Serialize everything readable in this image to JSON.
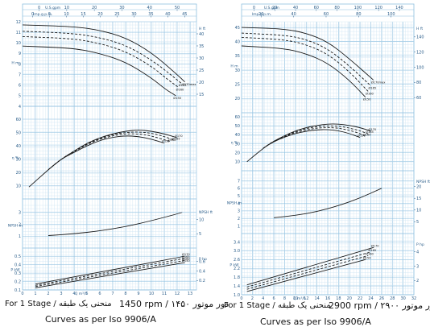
{
  "colors": {
    "grid_major": "#8fc0e0",
    "grid_minor": "#cde3f3",
    "curve": "#1a1a1a",
    "tick": "#2a5d8a"
  },
  "captions": [
    {
      "stage": "For 1 Stage / منحنی یک طبقه",
      "rpm": "1450 rpm / ۱۴۵۰ دور موتور",
      "iso": "Curves as per Iso 9906/A"
    },
    {
      "stage": "For 1 Stage / منحنی یک طبقه",
      "rpm": "2900 rpm / ۲۹۰۰ دور موتور",
      "iso": "Curves as per Iso 9906/A"
    }
  ],
  "chart_data": [
    {
      "type": "line",
      "rpm": 1450,
      "x_bottom": {
        "label": "Q m³/h",
        "ticks": [
          "0",
          "1",
          "2",
          "3",
          "4",
          "5",
          "6",
          "7",
          "8",
          "9",
          "10",
          "11",
          "12",
          "13"
        ],
        "range": [
          0,
          13.5
        ]
      },
      "x_top": [
        {
          "label": "U.S.gpm",
          "ticks": [
            "0",
            "10",
            "20",
            "30",
            "40",
            "50"
          ]
        },
        {
          "label": "Imp.g.p.m.",
          "ticks": [
            "0",
            "5",
            "10",
            "15",
            "20",
            "25",
            "30",
            "35",
            "40",
            "45"
          ]
        }
      ],
      "panels": [
        {
          "name": "head",
          "left_label": "H m",
          "left_ticks": [
            "4",
            "5",
            "6",
            "7",
            "8",
            "9",
            "10",
            "11",
            "12"
          ],
          "left_range": [
            4,
            12
          ],
          "right_label": "H ft",
          "right_ticks": [
            "15",
            "20",
            "25",
            "30",
            "35",
            "40"
          ],
          "series": [
            {
              "name": "Ø170max",
              "dashed": false,
              "x": [
                0,
                4,
                6,
                8,
                10,
                12,
                12.6
              ],
              "y": [
                11.7,
                11.55,
                11.2,
                10.5,
                9.1,
                7.0,
                6.3
              ]
            },
            {
              "name": "Ø165",
              "dashed": true,
              "x": [
                0,
                4,
                6,
                8,
                10,
                11.5,
                12.3
              ],
              "y": [
                11.1,
                10.9,
                10.5,
                9.8,
                8.4,
                7.0,
                6.2
              ]
            },
            {
              "name": "Ø160",
              "dashed": true,
              "x": [
                0,
                4,
                6,
                8,
                10,
                11.3,
                12.1
              ],
              "y": [
                10.6,
                10.4,
                9.95,
                9.2,
                7.8,
                6.5,
                5.8
              ]
            },
            {
              "name": "Ø150",
              "dashed": false,
              "x": [
                0,
                4,
                6,
                8,
                10,
                11.1,
                11.9
              ],
              "y": [
                9.7,
                9.5,
                9.0,
                8.2,
                6.7,
                5.6,
                5.0
              ]
            }
          ]
        },
        {
          "name": "efficiency",
          "left_label": "η %",
          "left_ticks": [
            "10",
            "20",
            "30",
            "40",
            "50",
            "60"
          ],
          "left_range": [
            0,
            60
          ],
          "series": [
            {
              "name": "Ø170",
              "dashed": false,
              "x": [
                0.5,
                2,
                3,
                4,
                5,
                6,
                7,
                8,
                9,
                10,
                11,
                12
              ],
              "y": [
                9,
                22,
                30,
                36,
                42,
                46,
                49,
                51,
                52,
                51,
                49,
                46
              ]
            },
            {
              "name": "Ø165",
              "dashed": true,
              "x": [
                2,
                3,
                4,
                5,
                6,
                7,
                8,
                9,
                10,
                11,
                11.8
              ],
              "y": [
                22,
                30,
                36,
                41.5,
                45.5,
                48.5,
                50,
                50.5,
                49.5,
                47,
                44
              ]
            },
            {
              "name": "Ø160",
              "dashed": true,
              "x": [
                2,
                3,
                4,
                5,
                6,
                7,
                8,
                9,
                10,
                11.5
              ],
              "y": [
                22,
                30,
                35.5,
                41,
                45,
                47.5,
                49,
                49,
                47.5,
                43
              ]
            },
            {
              "name": "Ø150",
              "dashed": false,
              "x": [
                2,
                3,
                4,
                5,
                6,
                7,
                8,
                9,
                10,
                11
              ],
              "y": [
                22,
                30,
                35,
                40,
                44,
                46.5,
                47.5,
                47,
                45,
                42
              ]
            }
          ]
        },
        {
          "name": "npsh",
          "left_label": "NPSH m",
          "left_ticks": [
            "1",
            "2",
            "3"
          ],
          "left_range": [
            0,
            3.6
          ],
          "right_label": "NPSH ft",
          "right_ticks": [
            "5",
            "10"
          ],
          "series": [
            {
              "name": "",
              "dashed": false,
              "x": [
                2,
                4,
                6,
                8,
                10,
                12.4
              ],
              "y": [
                1.05,
                1.2,
                1.45,
                1.8,
                2.3,
                3.0
              ]
            }
          ]
        },
        {
          "name": "power",
          "left_label": "P kW",
          "left_ticks": [
            "0.1",
            "0.2",
            "0.3",
            "0.4",
            "0.5"
          ],
          "left_range": [
            0.1,
            0.55
          ],
          "right_label": "P hp",
          "right_ticks": [
            "0.2",
            "0.4",
            "0.6"
          ],
          "series": [
            {
              "name": "Ø170",
              "dashed": false,
              "x": [
                1,
                12.6
              ],
              "y": [
                0.17,
                0.5
              ]
            },
            {
              "name": "Ø165",
              "dashed": true,
              "x": [
                1,
                12.6
              ],
              "y": [
                0.155,
                0.475
              ]
            },
            {
              "name": "Ø160",
              "dashed": true,
              "x": [
                1,
                12.6
              ],
              "y": [
                0.14,
                0.45
              ]
            },
            {
              "name": "Ø150",
              "dashed": false,
              "x": [
                1,
                12.6
              ],
              "y": [
                0.125,
                0.425
              ]
            }
          ]
        }
      ]
    },
    {
      "type": "line",
      "rpm": 2900,
      "x_bottom": {
        "label": "Q m³/h",
        "ticks": [
          "0",
          "2",
          "4",
          "6",
          "8",
          "10",
          "12",
          "14",
          "16",
          "18",
          "20",
          "22",
          "24",
          "26",
          "28",
          "30",
          "32"
        ],
        "range": [
          0,
          32
        ]
      },
      "x_top": [
        {
          "label": "U.S.gpm",
          "ticks": [
            "0",
            "20",
            "40",
            "60",
            "80",
            "100",
            "120",
            "140"
          ]
        },
        {
          "label": "Imp.g.p.m.",
          "ticks": [
            "20",
            "40",
            "60",
            "80",
            "100"
          ]
        }
      ],
      "panels": [
        {
          "name": "head",
          "left_label": "H m",
          "left_ticks": [
            "20",
            "25",
            "30",
            "35",
            "40",
            "45"
          ],
          "left_range": [
            15,
            47
          ],
          "right_label": "H ft",
          "right_ticks": [
            "60",
            "80",
            "100",
            "120",
            "140"
          ],
          "series": [
            {
              "name": "Ø170max",
              "dashed": false,
              "x": [
                0,
                8,
                12,
                16,
                20,
                24.5
              ],
              "y": [
                45,
                44.5,
                43,
                40,
                34,
                26.5
              ]
            },
            {
              "name": "Ø165",
              "dashed": true,
              "x": [
                0,
                8,
                12,
                16,
                20,
                24
              ],
              "y": [
                43,
                42.3,
                40.8,
                37.5,
                31.5,
                24.5
              ]
            },
            {
              "name": "Ø160",
              "dashed": true,
              "x": [
                0,
                8,
                12,
                16,
                20,
                23.5
              ],
              "y": [
                41.5,
                40.7,
                39,
                35.7,
                29.5,
                22.5
              ]
            },
            {
              "name": "Ø150",
              "dashed": false,
              "x": [
                0,
                8,
                12,
                16,
                20,
                23
              ],
              "y": [
                38.5,
                37.6,
                35.8,
                32.5,
                26.5,
                20.5
              ]
            }
          ]
        },
        {
          "name": "efficiency",
          "left_label": "η %",
          "left_ticks": [
            "10",
            "20",
            "30",
            "40",
            "50",
            "60"
          ],
          "left_range": [
            0,
            60
          ],
          "series": [
            {
              "name": "Ø170",
              "dashed": false,
              "x": [
                1,
                4,
                6,
                8,
                10,
                12,
                14,
                16,
                18,
                20,
                22,
                24
              ],
              "y": [
                10,
                25,
                33,
                39,
                44.5,
                48,
                50.5,
                52,
                52,
                50.5,
                48,
                44
              ]
            },
            {
              "name": "Ø165",
              "dashed": true,
              "x": [
                4,
                6,
                8,
                10,
                12,
                14,
                16,
                18,
                20,
                22,
                23.5
              ],
              "y": [
                25,
                33,
                38.5,
                43.5,
                47,
                49,
                50,
                49.5,
                47.5,
                44.5,
                41
              ]
            },
            {
              "name": "Ø160",
              "dashed": true,
              "x": [
                4,
                6,
                8,
                10,
                12,
                14,
                16,
                18,
                20,
                22,
                23
              ],
              "y": [
                25,
                33,
                38,
                42.5,
                45.5,
                47.5,
                48,
                47.5,
                45,
                41.5,
                38
              ]
            },
            {
              "name": "Ø150",
              "dashed": false,
              "x": [
                4,
                6,
                8,
                10,
                12,
                14,
                16,
                18,
                20,
                22
              ],
              "y": [
                25,
                32.5,
                37.5,
                41.5,
                44,
                45.5,
                45.8,
                44.5,
                41.5,
                37
              ]
            }
          ]
        },
        {
          "name": "npsh",
          "left_label": "NPSH m",
          "left_ticks": [
            "1",
            "2",
            "3",
            "4",
            "5",
            "6",
            "7"
          ],
          "left_range": [
            0,
            7.8
          ],
          "right_label": "NPSH ft",
          "right_ticks": [
            "5",
            "10",
            "15",
            "20"
          ],
          "series": [
            {
              "name": "",
              "dashed": false,
              "x": [
                6,
                10,
                14,
                18,
                22,
                26
              ],
              "y": [
                2.1,
                2.4,
                2.9,
                3.7,
                4.7,
                6.0
              ]
            }
          ]
        },
        {
          "name": "power",
          "left_label": "P kW",
          "left_ticks": [
            "1.0",
            "1.4",
            "1.8",
            "2.2",
            "2.6",
            "3.0",
            "3.4"
          ],
          "left_range": [
            1.0,
            3.6
          ],
          "right_label": "P hp",
          "right_ticks": [
            "2",
            "3",
            "4"
          ],
          "series": [
            {
              "name": "Ø170",
              "dashed": false,
              "x": [
                1,
                24.5
              ],
              "y": [
                1.45,
                3.15
              ]
            },
            {
              "name": "Ø165",
              "dashed": true,
              "x": [
                1,
                24
              ],
              "y": [
                1.35,
                2.95
              ]
            },
            {
              "name": "Ø160",
              "dashed": true,
              "x": [
                1,
                23.5
              ],
              "y": [
                1.25,
                2.78
              ]
            },
            {
              "name": "Ø150",
              "dashed": false,
              "x": [
                1,
                23
              ],
              "y": [
                1.15,
                2.6
              ]
            }
          ]
        }
      ]
    }
  ]
}
